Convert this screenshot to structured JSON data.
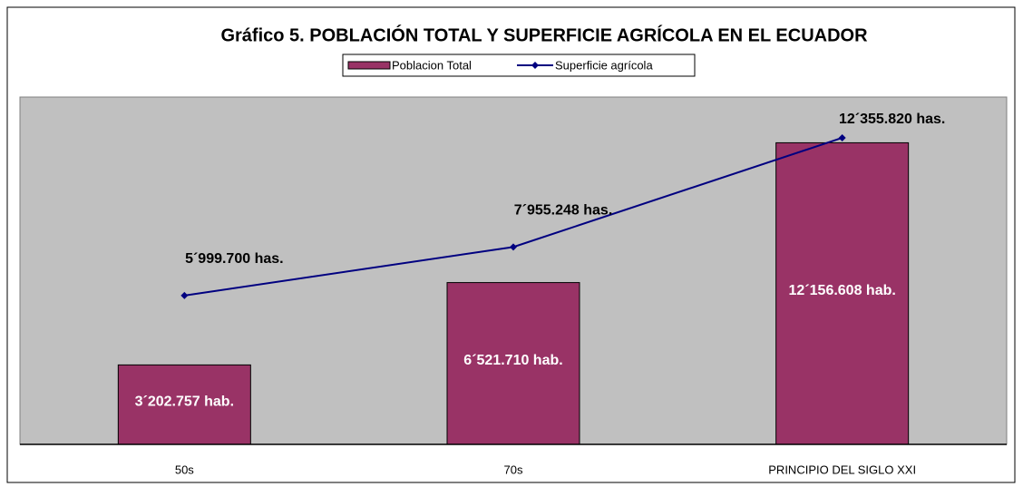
{
  "chart_data": {
    "type": "bar",
    "title": "Gráfico 5. POBLACIÓN TOTAL Y SUPERFICIE AGRÍCOLA EN EL ECUADOR",
    "categories": [
      "50s",
      "70s",
      "PRINCIPIO DEL SIGLO XXI"
    ],
    "ylim": [
      0,
      14000000
    ],
    "legend": "top",
    "series": [
      {
        "name": "Poblacion Total",
        "type": "bar",
        "color": "#993366",
        "values": [
          3202757,
          6521710,
          12156608
        ],
        "value_labels": [
          "3´202.757 hab.",
          "6´521.710 hab.",
          "12´156.608 hab."
        ]
      },
      {
        "name": "Superficie agrícola",
        "type": "line",
        "color": "#000080",
        "values": [
          5999700,
          7955248,
          12355820
        ],
        "value_labels": [
          "5´999.700 has.",
          "7´955.248 has.",
          "12´355.820 has."
        ]
      }
    ]
  }
}
